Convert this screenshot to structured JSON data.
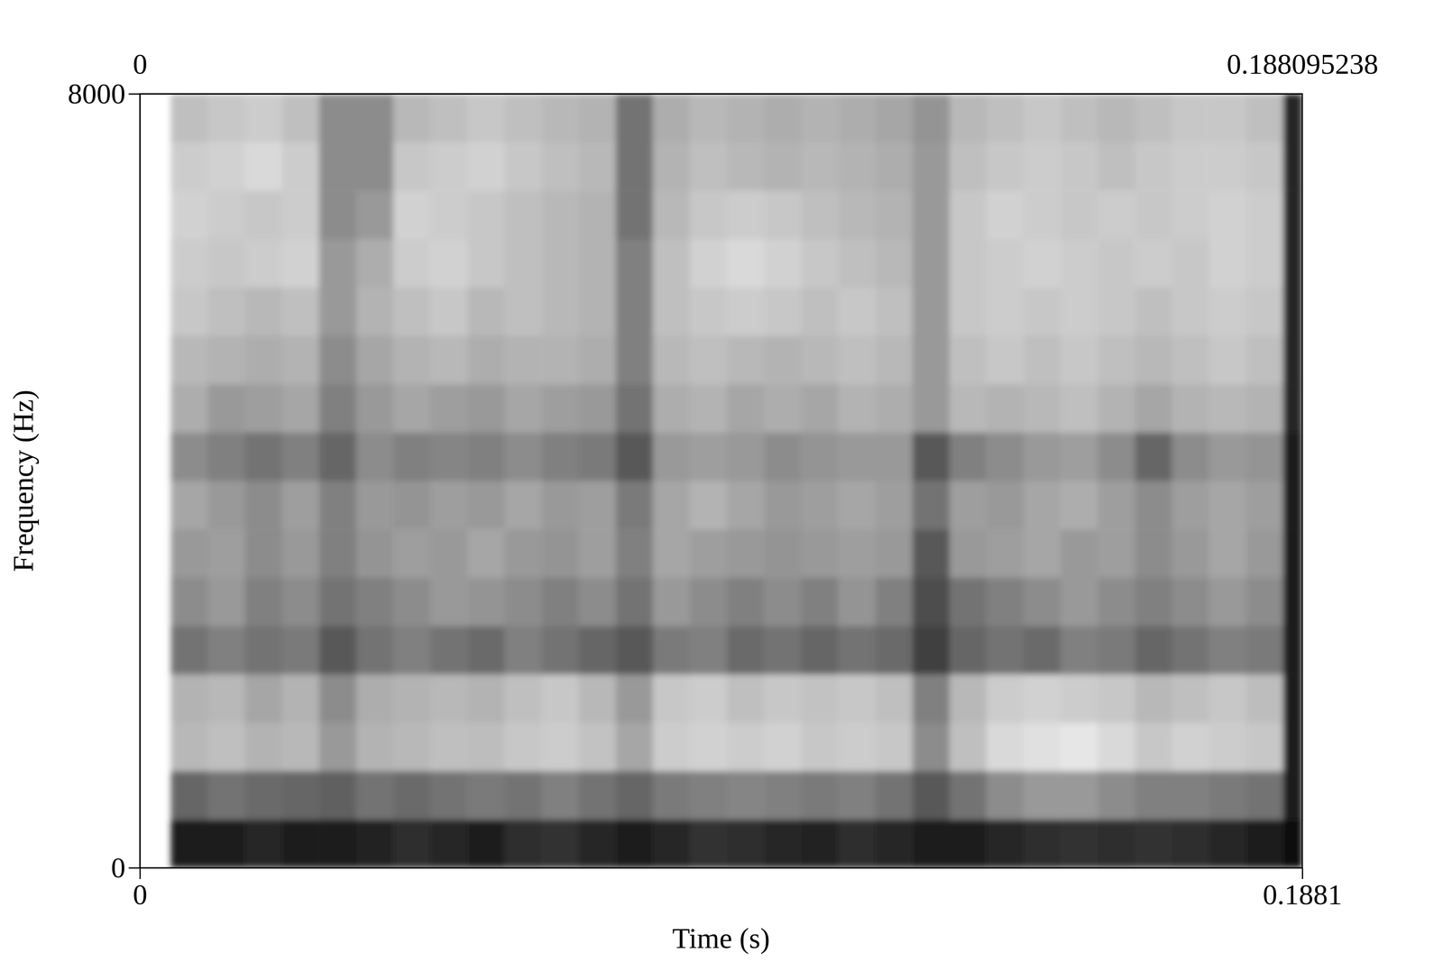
{
  "chart_data": {
    "type": "heatmap",
    "x_label": "Time (s)",
    "y_label": "Frequency (Hz)",
    "xlim": [
      0,
      0.188095238
    ],
    "xticks": [
      {
        "value": 0,
        "label": "0"
      },
      {
        "value": 0.188095238,
        "label": "0.1881"
      }
    ],
    "x2ticks": [
      0,
      0.188095238
    ],
    "ylim": [
      0,
      8000
    ],
    "yticks": [
      0,
      8000
    ],
    "clim": [
      0,
      1
    ],
    "x_bins": [
      0.005,
      0.011,
      0.017,
      0.023,
      0.029,
      0.035,
      0.041,
      0.047,
      0.053,
      0.059,
      0.065,
      0.071,
      0.077,
      0.083,
      0.089,
      0.095,
      0.101,
      0.107,
      0.113,
      0.119,
      0.125,
      0.131,
      0.137,
      0.143,
      0.149,
      0.155,
      0.161,
      0.167,
      0.173,
      0.179,
      0.185,
      0.1881
    ],
    "y_bins": [
      0,
      500,
      1000,
      1500,
      2000,
      2500,
      3000,
      3500,
      4000,
      4500,
      5000,
      5500,
      6000,
      6500,
      7000,
      7500,
      8000
    ],
    "cells": [
      [
        0.1,
        0.12,
        0.15,
        0.12,
        0.1,
        0.14,
        0.18,
        0.15,
        0.12,
        0.18,
        0.2,
        0.15,
        0.12,
        0.15,
        0.2,
        0.18,
        0.15,
        0.14,
        0.18,
        0.15,
        0.1,
        0.12,
        0.15,
        0.18,
        0.2,
        0.18,
        0.2,
        0.18,
        0.15,
        0.12,
        0.05
      ],
      [
        0.4,
        0.45,
        0.42,
        0.4,
        0.38,
        0.45,
        0.42,
        0.45,
        0.48,
        0.45,
        0.5,
        0.45,
        0.4,
        0.48,
        0.5,
        0.52,
        0.5,
        0.48,
        0.5,
        0.45,
        0.35,
        0.45,
        0.55,
        0.6,
        0.6,
        0.55,
        0.5,
        0.5,
        0.48,
        0.45,
        0.1
      ],
      [
        0.72,
        0.75,
        0.7,
        0.72,
        0.6,
        0.7,
        0.72,
        0.75,
        0.74,
        0.78,
        0.8,
        0.76,
        0.65,
        0.8,
        0.82,
        0.8,
        0.82,
        0.78,
        0.8,
        0.78,
        0.55,
        0.75,
        0.85,
        0.88,
        0.9,
        0.85,
        0.78,
        0.82,
        0.8,
        0.78,
        0.12
      ],
      [
        0.7,
        0.72,
        0.65,
        0.7,
        0.55,
        0.68,
        0.7,
        0.72,
        0.7,
        0.75,
        0.78,
        0.72,
        0.6,
        0.78,
        0.8,
        0.75,
        0.78,
        0.76,
        0.78,
        0.75,
        0.5,
        0.72,
        0.8,
        0.82,
        0.8,
        0.78,
        0.72,
        0.75,
        0.78,
        0.74,
        0.12
      ],
      [
        0.45,
        0.5,
        0.45,
        0.48,
        0.35,
        0.45,
        0.5,
        0.45,
        0.42,
        0.5,
        0.45,
        0.4,
        0.35,
        0.48,
        0.5,
        0.42,
        0.45,
        0.4,
        0.45,
        0.42,
        0.25,
        0.4,
        0.45,
        0.42,
        0.5,
        0.48,
        0.4,
        0.45,
        0.5,
        0.48,
        0.1
      ],
      [
        0.55,
        0.6,
        0.5,
        0.55,
        0.45,
        0.5,
        0.55,
        0.6,
        0.58,
        0.55,
        0.5,
        0.55,
        0.45,
        0.6,
        0.55,
        0.5,
        0.55,
        0.5,
        0.58,
        0.5,
        0.3,
        0.45,
        0.5,
        0.55,
        0.6,
        0.55,
        0.5,
        0.55,
        0.6,
        0.55,
        0.1
      ],
      [
        0.6,
        0.62,
        0.55,
        0.6,
        0.5,
        0.58,
        0.62,
        0.6,
        0.65,
        0.6,
        0.58,
        0.62,
        0.5,
        0.65,
        0.62,
        0.6,
        0.58,
        0.6,
        0.62,
        0.6,
        0.35,
        0.6,
        0.62,
        0.65,
        0.6,
        0.62,
        0.55,
        0.6,
        0.65,
        0.6,
        0.12
      ],
      [
        0.65,
        0.6,
        0.55,
        0.62,
        0.5,
        0.6,
        0.58,
        0.62,
        0.6,
        0.65,
        0.6,
        0.62,
        0.48,
        0.65,
        0.7,
        0.65,
        0.6,
        0.62,
        0.65,
        0.62,
        0.45,
        0.62,
        0.6,
        0.65,
        0.68,
        0.62,
        0.55,
        0.62,
        0.65,
        0.62,
        0.12
      ],
      [
        0.55,
        0.5,
        0.45,
        0.5,
        0.4,
        0.55,
        0.5,
        0.52,
        0.5,
        0.55,
        0.5,
        0.48,
        0.35,
        0.6,
        0.62,
        0.6,
        0.55,
        0.58,
        0.6,
        0.6,
        0.35,
        0.5,
        0.55,
        0.6,
        0.62,
        0.55,
        0.4,
        0.55,
        0.6,
        0.58,
        0.12
      ],
      [
        0.68,
        0.6,
        0.62,
        0.65,
        0.5,
        0.6,
        0.65,
        0.62,
        0.6,
        0.65,
        0.62,
        0.6,
        0.45,
        0.68,
        0.7,
        0.65,
        0.68,
        0.65,
        0.7,
        0.68,
        0.6,
        0.72,
        0.7,
        0.72,
        0.75,
        0.7,
        0.65,
        0.7,
        0.72,
        0.7,
        0.15
      ],
      [
        0.72,
        0.7,
        0.68,
        0.7,
        0.55,
        0.65,
        0.7,
        0.72,
        0.68,
        0.7,
        0.7,
        0.68,
        0.5,
        0.72,
        0.75,
        0.72,
        0.7,
        0.72,
        0.75,
        0.72,
        0.6,
        0.75,
        0.78,
        0.75,
        0.78,
        0.75,
        0.72,
        0.75,
        0.78,
        0.75,
        0.15
      ],
      [
        0.78,
        0.75,
        0.72,
        0.75,
        0.6,
        0.7,
        0.75,
        0.78,
        0.72,
        0.75,
        0.72,
        0.7,
        0.5,
        0.75,
        0.78,
        0.8,
        0.78,
        0.75,
        0.78,
        0.75,
        0.6,
        0.78,
        0.8,
        0.78,
        0.8,
        0.78,
        0.75,
        0.78,
        0.8,
        0.78,
        0.15
      ],
      [
        0.8,
        0.78,
        0.8,
        0.82,
        0.6,
        0.68,
        0.8,
        0.82,
        0.78,
        0.75,
        0.72,
        0.7,
        0.5,
        0.75,
        0.82,
        0.85,
        0.82,
        0.78,
        0.75,
        0.72,
        0.6,
        0.78,
        0.8,
        0.82,
        0.8,
        0.78,
        0.8,
        0.78,
        0.82,
        0.8,
        0.15
      ],
      [
        0.82,
        0.8,
        0.78,
        0.8,
        0.55,
        0.6,
        0.82,
        0.8,
        0.78,
        0.75,
        0.72,
        0.7,
        0.45,
        0.72,
        0.78,
        0.8,
        0.78,
        0.75,
        0.72,
        0.7,
        0.6,
        0.78,
        0.82,
        0.8,
        0.78,
        0.8,
        0.78,
        0.8,
        0.82,
        0.8,
        0.15
      ],
      [
        0.8,
        0.82,
        0.85,
        0.8,
        0.55,
        0.55,
        0.78,
        0.8,
        0.82,
        0.78,
        0.75,
        0.72,
        0.45,
        0.7,
        0.75,
        0.72,
        0.7,
        0.72,
        0.7,
        0.68,
        0.6,
        0.75,
        0.78,
        0.8,
        0.78,
        0.75,
        0.78,
        0.8,
        0.8,
        0.78,
        0.15
      ],
      [
        0.75,
        0.78,
        0.8,
        0.75,
        0.55,
        0.55,
        0.72,
        0.75,
        0.78,
        0.75,
        0.72,
        0.7,
        0.45,
        0.68,
        0.72,
        0.7,
        0.68,
        0.7,
        0.68,
        0.65,
        0.58,
        0.72,
        0.75,
        0.78,
        0.75,
        0.72,
        0.75,
        0.78,
        0.78,
        0.75,
        0.15
      ]
    ]
  }
}
